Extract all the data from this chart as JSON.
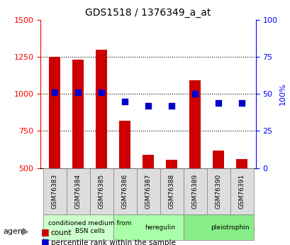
{
  "title": "GDS1518 / 1376349_a_at",
  "categories": [
    "GSM76383",
    "GSM76384",
    "GSM76385",
    "GSM76386",
    "GSM76387",
    "GSM76388",
    "GSM76389",
    "GSM76390",
    "GSM76391"
  ],
  "counts": [
    1248,
    1230,
    1295,
    820,
    590,
    555,
    1090,
    620,
    560
  ],
  "percentiles": [
    51,
    51,
    51,
    45,
    42,
    42,
    50,
    44,
    44
  ],
  "ylim_left": [
    500,
    1500
  ],
  "ylim_right": [
    0,
    100
  ],
  "yticks_left": [
    500,
    750,
    1000,
    1250,
    1500
  ],
  "yticks_right": [
    0,
    25,
    50,
    75,
    100
  ],
  "bar_color": "#cc0000",
  "dot_color": "#0000cc",
  "grid_color": "#000000",
  "groups": [
    {
      "label": "conditioned medium from\nBSN cells",
      "start": 0,
      "end": 3,
      "color": "#ccffcc"
    },
    {
      "label": "heregulin",
      "start": 3,
      "end": 6,
      "color": "#aaffaa"
    },
    {
      "label": "pleiotrophin",
      "start": 6,
      "end": 9,
      "color": "#88ee88"
    }
  ],
  "agent_label": "agent",
  "legend_count_label": "count",
  "legend_pct_label": "percentile rank within the sample",
  "bar_width": 0.5,
  "base_value": 500
}
